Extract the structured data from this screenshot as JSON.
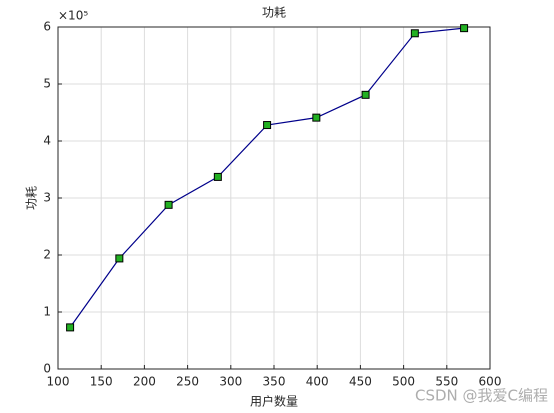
{
  "chart_data": {
    "type": "line",
    "title": "功耗",
    "xlabel": "用户数量",
    "ylabel": "功耗",
    "y_exponent_label": "×10⁵",
    "x": [
      114,
      171,
      228,
      285,
      342,
      399,
      456,
      513,
      570
    ],
    "series": [
      {
        "name": "功耗",
        "color": "#00008b",
        "marker_color": "#22b022",
        "values": [
          0.73,
          1.94,
          2.88,
          3.37,
          4.28,
          4.41,
          4.81,
          5.89,
          5.98
        ]
      }
    ],
    "xlim": [
      100,
      600
    ],
    "xticks": [
      100,
      150,
      200,
      250,
      300,
      350,
      400,
      450,
      500,
      550,
      600
    ],
    "ylim": [
      0,
      6
    ],
    "yticks": [
      0,
      1,
      2,
      3,
      4,
      5,
      6
    ],
    "grid": true,
    "watermark": "CSDN @我爱C编程"
  }
}
